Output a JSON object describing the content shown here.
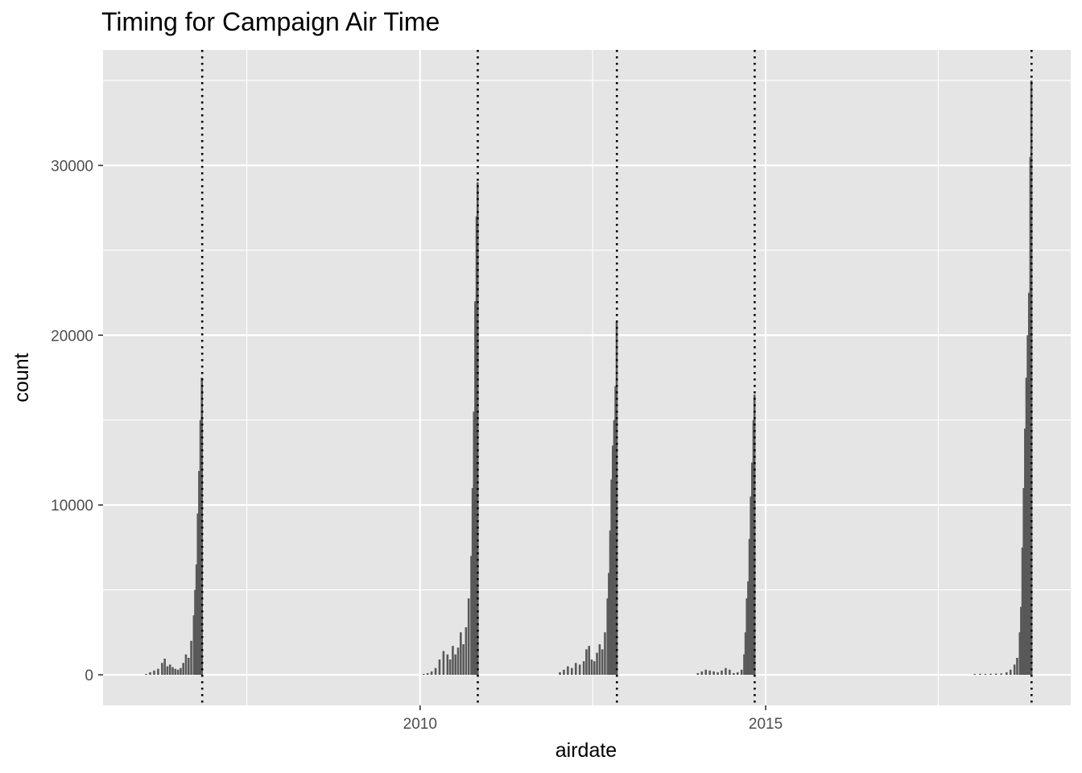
{
  "chart_data": {
    "type": "bar",
    "title": "Timing for Campaign Air Time",
    "xlabel": "airdate",
    "ylabel": "count",
    "x_scale": "date",
    "xlim": [
      "2005-06-01",
      "2019-06-01"
    ],
    "ylim": [
      -1800,
      36800
    ],
    "x_ticks": [
      {
        "value": "2010-01-01",
        "label": "2010"
      },
      {
        "value": "2015-01-01",
        "label": "2015"
      }
    ],
    "x_minor_ticks": [
      "2007-07-01",
      "2012-07-01",
      "2017-07-01"
    ],
    "y_ticks": [
      {
        "value": 0,
        "label": "0"
      },
      {
        "value": 10000,
        "label": "10000"
      },
      {
        "value": 20000,
        "label": "20000"
      },
      {
        "value": 30000,
        "label": "30000"
      }
    ],
    "y_minor_ticks": [
      5000,
      15000,
      25000,
      35000
    ],
    "grid": true,
    "panel_background": "#e5e5e5",
    "bar_color": "#595959",
    "reference_lines": {
      "style": "dotted",
      "color": "#000000",
      "x": [
        "2006-11-07",
        "2010-11-02",
        "2012-11-06",
        "2014-11-04",
        "2018-11-06"
      ]
    },
    "series": [
      {
        "points": [
          [
            "2006-01-15",
            50
          ],
          [
            "2006-02-05",
            150
          ],
          [
            "2006-02-26",
            250
          ],
          [
            "2006-03-19",
            350
          ],
          [
            "2006-04-09",
            700
          ],
          [
            "2006-04-23",
            950
          ],
          [
            "2006-05-07",
            500
          ],
          [
            "2006-05-21",
            600
          ],
          [
            "2006-06-04",
            450
          ],
          [
            "2006-06-18",
            350
          ],
          [
            "2006-07-02",
            300
          ],
          [
            "2006-07-16",
            400
          ],
          [
            "2006-07-30",
            700
          ],
          [
            "2006-08-13",
            1200
          ],
          [
            "2006-08-27",
            1000
          ],
          [
            "2006-09-10",
            2000
          ],
          [
            "2006-09-24",
            3500
          ],
          [
            "2006-10-01",
            5000
          ],
          [
            "2006-10-08",
            6500
          ],
          [
            "2006-10-15",
            9500
          ],
          [
            "2006-10-22",
            12000
          ],
          [
            "2006-10-29",
            15000
          ],
          [
            "2006-11-05",
            17500
          ]
        ]
      },
      {
        "points": [
          [
            "2010-01-20",
            50
          ],
          [
            "2010-02-10",
            100
          ],
          [
            "2010-03-03",
            200
          ],
          [
            "2010-03-24",
            400
          ],
          [
            "2010-04-14",
            900
          ],
          [
            "2010-05-05",
            1400
          ],
          [
            "2010-05-26",
            1200
          ],
          [
            "2010-06-09",
            900
          ],
          [
            "2010-06-23",
            1700
          ],
          [
            "2010-07-07",
            1200
          ],
          [
            "2010-07-21",
            1600
          ],
          [
            "2010-08-04",
            2500
          ],
          [
            "2010-08-18",
            1800
          ],
          [
            "2010-09-01",
            2800
          ],
          [
            "2010-09-15",
            4500
          ],
          [
            "2010-09-29",
            7000
          ],
          [
            "2010-10-06",
            11000
          ],
          [
            "2010-10-13",
            15500
          ],
          [
            "2010-10-20",
            22000
          ],
          [
            "2010-10-27",
            27000
          ],
          [
            "2010-11-01",
            29000
          ]
        ]
      },
      {
        "points": [
          [
            "2012-01-10",
            150
          ],
          [
            "2012-01-31",
            300
          ],
          [
            "2012-02-21",
            500
          ],
          [
            "2012-03-13",
            400
          ],
          [
            "2012-04-03",
            700
          ],
          [
            "2012-04-24",
            600
          ],
          [
            "2012-05-15",
            800
          ],
          [
            "2012-05-29",
            1500
          ],
          [
            "2012-06-12",
            1700
          ],
          [
            "2012-06-26",
            900
          ],
          [
            "2012-07-10",
            800
          ],
          [
            "2012-07-24",
            1300
          ],
          [
            "2012-08-07",
            1800
          ],
          [
            "2012-08-21",
            1500
          ],
          [
            "2012-09-04",
            2500
          ],
          [
            "2012-09-18",
            4500
          ],
          [
            "2012-09-25",
            6000
          ],
          [
            "2012-10-02",
            8500
          ],
          [
            "2012-10-09",
            11500
          ],
          [
            "2012-10-16",
            13500
          ],
          [
            "2012-10-23",
            15000
          ],
          [
            "2012-10-30",
            17000
          ],
          [
            "2012-11-05",
            20800
          ]
        ]
      },
      {
        "points": [
          [
            "2014-01-08",
            100
          ],
          [
            "2014-01-29",
            200
          ],
          [
            "2014-02-19",
            300
          ],
          [
            "2014-03-12",
            250
          ],
          [
            "2014-04-02",
            200
          ],
          [
            "2014-04-23",
            150
          ],
          [
            "2014-05-14",
            250
          ],
          [
            "2014-06-04",
            400
          ],
          [
            "2014-06-25",
            300
          ],
          [
            "2014-07-16",
            100
          ],
          [
            "2014-08-06",
            150
          ],
          [
            "2014-08-27",
            300
          ],
          [
            "2014-09-10",
            1200
          ],
          [
            "2014-09-17",
            2500
          ],
          [
            "2014-09-24",
            4500
          ],
          [
            "2014-10-01",
            5500
          ],
          [
            "2014-10-08",
            8000
          ],
          [
            "2014-10-15",
            10500
          ],
          [
            "2014-10-22",
            12500
          ],
          [
            "2014-10-29",
            15000
          ],
          [
            "2014-11-03",
            16500
          ]
        ]
      },
      {
        "points": [
          [
            "2018-01-10",
            50
          ],
          [
            "2018-02-07",
            60
          ],
          [
            "2018-03-07",
            50
          ],
          [
            "2018-04-04",
            60
          ],
          [
            "2018-05-02",
            70
          ],
          [
            "2018-05-30",
            80
          ],
          [
            "2018-06-27",
            150
          ],
          [
            "2018-07-18",
            300
          ],
          [
            "2018-08-08",
            600
          ],
          [
            "2018-08-22",
            1000
          ],
          [
            "2018-09-05",
            2500
          ],
          [
            "2018-09-12",
            4000
          ],
          [
            "2018-09-19",
            7500
          ],
          [
            "2018-09-26",
            11000
          ],
          [
            "2018-10-03",
            14500
          ],
          [
            "2018-10-10",
            17500
          ],
          [
            "2018-10-17",
            20000
          ],
          [
            "2018-10-24",
            22500
          ],
          [
            "2018-10-31",
            30500
          ],
          [
            "2018-11-05",
            35000
          ]
        ]
      }
    ]
  }
}
